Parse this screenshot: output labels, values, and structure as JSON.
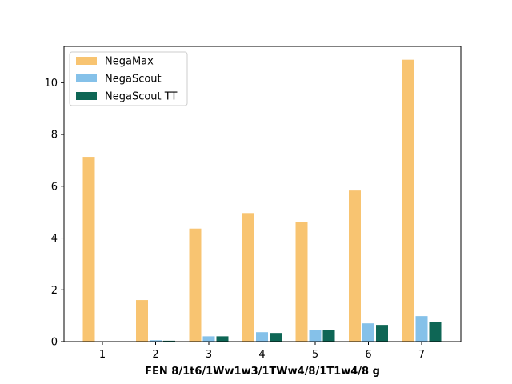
{
  "chart_data": {
    "type": "bar",
    "title": "",
    "xlabel": "FEN 8/1t6/1Ww1w3/1TWw4/8/1T1w4/8 g",
    "ylabel": "",
    "categories": [
      "1",
      "2",
      "3",
      "4",
      "5",
      "6",
      "7"
    ],
    "series": [
      {
        "name": "NegaMax",
        "color": "#f8c471",
        "values": [
          7.15,
          1.62,
          4.38,
          4.98,
          4.63,
          5.85,
          10.9
        ]
      },
      {
        "name": "NegaScout",
        "color": "#85c1e9",
        "values": [
          0.01,
          0.07,
          0.22,
          0.38,
          0.47,
          0.72,
          1.0
        ]
      },
      {
        "name": "NegaScout TT",
        "color": "#0e6655",
        "values": [
          0.02,
          0.05,
          0.22,
          0.35,
          0.47,
          0.66,
          0.78
        ]
      }
    ],
    "ylim": [
      0,
      11.4
    ],
    "yticks": [
      0,
      2,
      4,
      6,
      8,
      10
    ],
    "grid": false,
    "legend": "top-left"
  }
}
